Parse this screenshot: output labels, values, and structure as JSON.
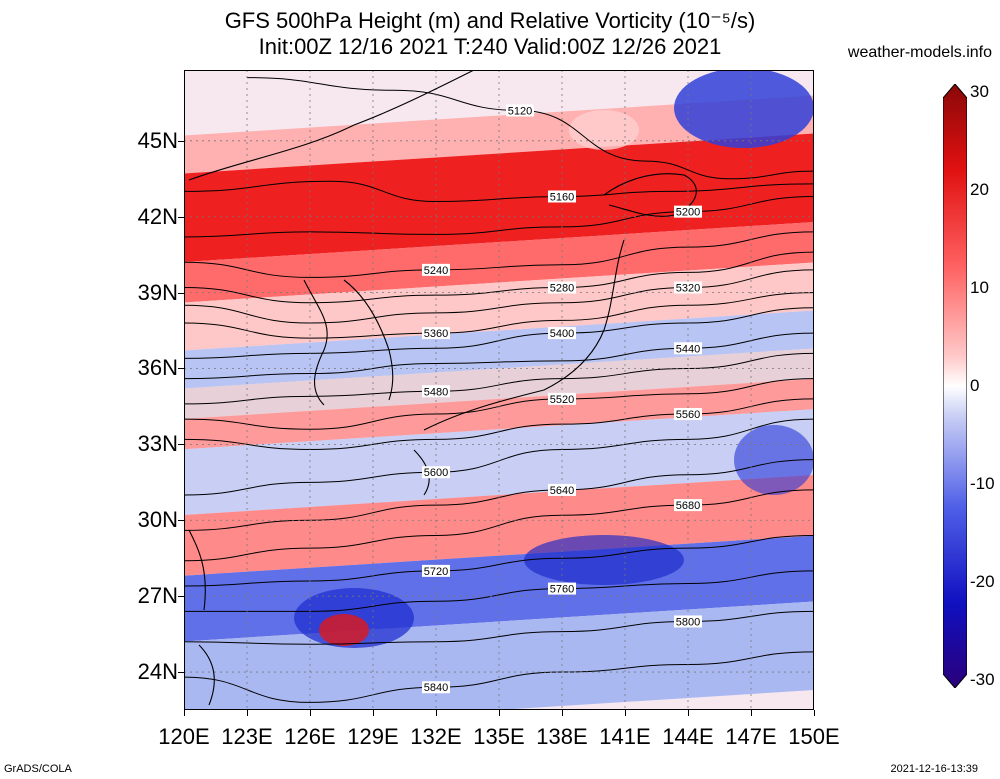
{
  "title": {
    "line1": "GFS 500hPa Height (m) and Relative Vorticity (10⁻⁵/s)",
    "line2": "Init:00Z 12/16 2021 T:240 Valid:00Z 12/26 2021"
  },
  "site": "weather-models.info",
  "footer": {
    "left": "GrADS/COLA",
    "right": "2021-12-16-13:39"
  },
  "lat_labels": [
    "45N",
    "42N",
    "39N",
    "36N",
    "33N",
    "30N",
    "27N",
    "24N"
  ],
  "lon_labels": [
    "120E",
    "123E",
    "126E",
    "129E",
    "132E",
    "135E",
    "138E",
    "141E",
    "144E",
    "147E",
    "150E"
  ],
  "colorbar": {
    "labels": [
      "30",
      "20",
      "10",
      "0",
      "-10",
      "-20",
      "-30"
    ],
    "top_color": "#a01010",
    "mid_color": "#ffffff",
    "bottom_color": "#2a007a"
  },
  "contours": [
    {
      "label": "5120",
      "points": [
        [
          123,
          47.5
        ],
        [
          130,
          47.0
        ],
        [
          136,
          46.2
        ],
        [
          142,
          44.2
        ],
        [
          146,
          43.5
        ],
        [
          150,
          43.8
        ]
      ]
    },
    {
      "label": "5160",
      "points": [
        [
          120,
          43.0
        ],
        [
          127,
          43.4
        ],
        [
          132,
          42.6
        ],
        [
          138,
          42.8
        ],
        [
          143,
          43.0
        ],
        [
          150,
          43.3
        ]
      ]
    },
    {
      "label": "5200",
      "points": [
        [
          120,
          41.2
        ],
        [
          126,
          41.4
        ],
        [
          132,
          41.3
        ],
        [
          138,
          41.6
        ],
        [
          144,
          42.2
        ],
        [
          150,
          42.8
        ]
      ]
    },
    {
      "label": "5240",
      "points": [
        [
          120,
          40.2
        ],
        [
          126,
          39.6
        ],
        [
          132,
          39.9
        ],
        [
          138,
          40.1
        ],
        [
          144,
          40.8
        ],
        [
          150,
          41.4
        ]
      ]
    },
    {
      "label": "5280",
      "points": [
        [
          120,
          39.2
        ],
        [
          126,
          38.6
        ],
        [
          132,
          38.9
        ],
        [
          138,
          39.2
        ],
        [
          144,
          39.8
        ],
        [
          150,
          40.6
        ]
      ]
    },
    {
      "label": "5320",
      "points": [
        [
          120,
          38.5
        ],
        [
          126,
          37.8
        ],
        [
          132,
          38.2
        ],
        [
          138,
          38.6
        ],
        [
          144,
          39.2
        ],
        [
          150,
          39.9
        ]
      ]
    },
    {
      "label": "5360",
      "points": [
        [
          120,
          37.8
        ],
        [
          126,
          37.2
        ],
        [
          132,
          37.4
        ],
        [
          138,
          37.9
        ],
        [
          144,
          38.5
        ],
        [
          150,
          39.0
        ]
      ]
    },
    {
      "label": "5400",
      "points": [
        [
          120,
          36.4
        ],
        [
          126,
          36.6
        ],
        [
          132,
          36.8
        ],
        [
          138,
          37.4
        ],
        [
          144,
          37.8
        ],
        [
          150,
          38.4
        ]
      ]
    },
    {
      "label": "5440",
      "points": [
        [
          120,
          35.6
        ],
        [
          126,
          35.8
        ],
        [
          132,
          36.2
        ],
        [
          138,
          36.3
        ],
        [
          144,
          36.8
        ],
        [
          150,
          37.4
        ]
      ]
    },
    {
      "label": "5480",
      "points": [
        [
          120,
          34.6
        ],
        [
          126,
          34.9
        ],
        [
          132,
          35.1
        ],
        [
          138,
          35.6
        ],
        [
          144,
          36.0
        ],
        [
          150,
          36.6
        ]
      ]
    },
    {
      "label": "5520",
      "points": [
        [
          120,
          34.0
        ],
        [
          126,
          33.6
        ],
        [
          132,
          34.2
        ],
        [
          138,
          34.8
        ],
        [
          144,
          35.0
        ],
        [
          150,
          35.6
        ]
      ]
    },
    {
      "label": "5560",
      "points": [
        [
          120,
          33.2
        ],
        [
          126,
          32.8
        ],
        [
          132,
          33.2
        ],
        [
          138,
          33.8
        ],
        [
          144,
          34.2
        ],
        [
          150,
          34.8
        ]
      ]
    },
    {
      "label": "5600",
      "points": [
        [
          120,
          31.0
        ],
        [
          126,
          31.5
        ],
        [
          132,
          31.9
        ],
        [
          138,
          32.8
        ],
        [
          144,
          33.2
        ],
        [
          150,
          34.0
        ]
      ]
    },
    {
      "label": "5640",
      "points": [
        [
          120,
          29.6
        ],
        [
          126,
          30.0
        ],
        [
          132,
          30.6
        ],
        [
          138,
          31.2
        ],
        [
          144,
          31.8
        ],
        [
          150,
          32.4
        ]
      ]
    },
    {
      "label": "5680",
      "points": [
        [
          120,
          28.4
        ],
        [
          126,
          28.9
        ],
        [
          132,
          29.4
        ],
        [
          138,
          30.2
        ],
        [
          144,
          30.6
        ],
        [
          150,
          31.2
        ]
      ]
    },
    {
      "label": "5720",
      "points": [
        [
          120,
          27.4
        ],
        [
          126,
          27.6
        ],
        [
          132,
          28.0
        ],
        [
          138,
          28.5
        ],
        [
          144,
          28.9
        ],
        [
          150,
          29.4
        ]
      ]
    },
    {
      "label": "5760",
      "points": [
        [
          120,
          26.4
        ],
        [
          126,
          26.4
        ],
        [
          132,
          26.8
        ],
        [
          138,
          27.3
        ],
        [
          144,
          27.5
        ],
        [
          150,
          28.0
        ]
      ]
    },
    {
      "label": "5800",
      "points": [
        [
          120,
          25.2
        ],
        [
          126,
          25.1
        ],
        [
          132,
          25.2
        ],
        [
          138,
          25.6
        ],
        [
          144,
          26.0
        ],
        [
          150,
          26.4
        ]
      ]
    },
    {
      "label": "5840",
      "points": [
        [
          120,
          23.8
        ],
        [
          126,
          22.8
        ],
        [
          132,
          23.4
        ],
        [
          138,
          24.0
        ],
        [
          144,
          24.3
        ],
        [
          150,
          24.8
        ]
      ]
    }
  ],
  "vorticity_bands": [
    {
      "lat_top": 46.0,
      "lat_bottom": 44.5,
      "color": "#ffb0b0"
    },
    {
      "lat_top": 44.5,
      "lat_bottom": 41.0,
      "color": "#ee2020"
    },
    {
      "lat_top": 41.0,
      "lat_bottom": 39.4,
      "color": "#ff6a6a"
    },
    {
      "lat_top": 39.4,
      "lat_bottom": 37.5,
      "color": "#ffc8c8"
    },
    {
      "lat_top": 37.5,
      "lat_bottom": 36.0,
      "color": "#b8c4f4"
    },
    {
      "lat_top": 36.0,
      "lat_bottom": 34.8,
      "color": "#e8d0d8"
    },
    {
      "lat_top": 34.8,
      "lat_bottom": 33.6,
      "color": "#ff9a9a"
    },
    {
      "lat_top": 33.6,
      "lat_bottom": 31.0,
      "color": "#c8cef4"
    },
    {
      "lat_top": 31.0,
      "lat_bottom": 28.6,
      "color": "#ff8a8a"
    },
    {
      "lat_top": 28.6,
      "lat_bottom": 26.0,
      "color": "#6070e8"
    },
    {
      "lat_top": 26.0,
      "lat_bottom": 22.5,
      "color": "#aab8f2"
    }
  ]
}
